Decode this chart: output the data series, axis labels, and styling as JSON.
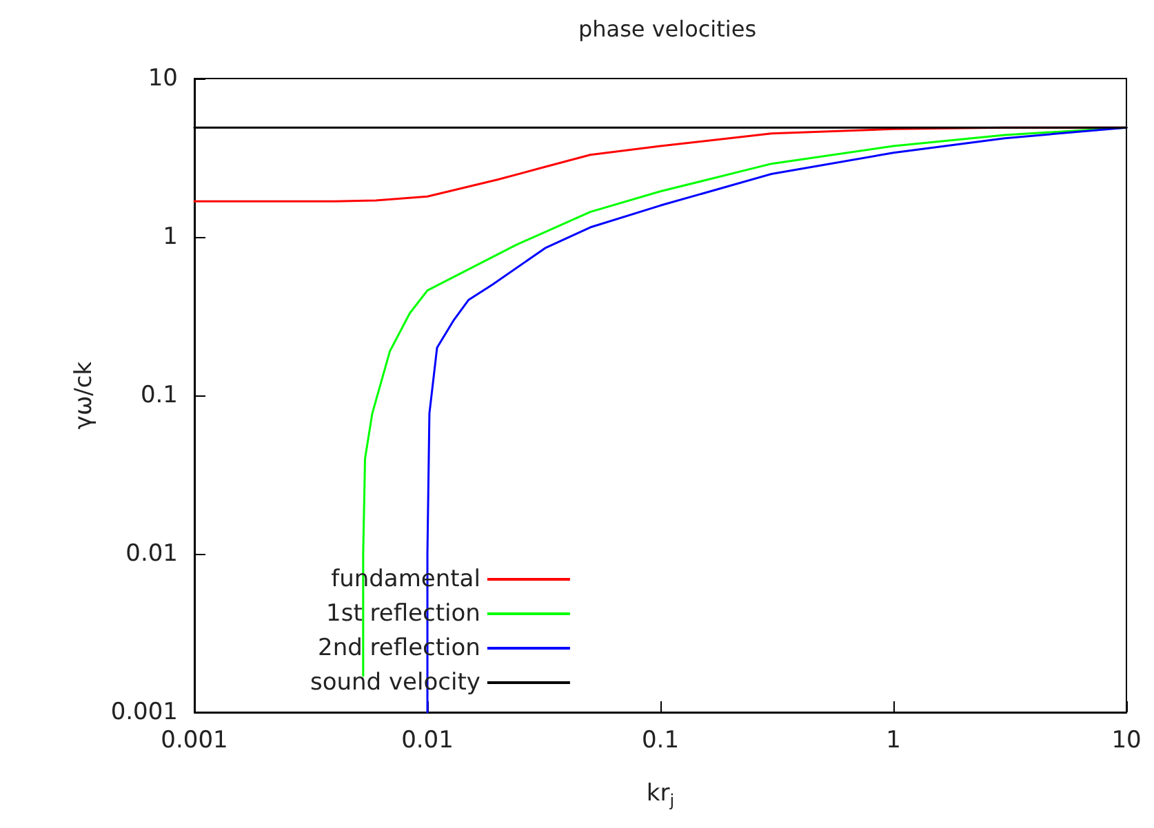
{
  "chart_data": {
    "type": "line",
    "title": "phase velocities",
    "xlabel": "kr$_{j}$",
    "ylabel": "γω/ck",
    "log": "xy",
    "grid": false,
    "legend": "bottom left",
    "marker": "none",
    "line_style": "solid",
    "xlim": [
      0.001,
      10
    ],
    "ylim": [
      0.001,
      10
    ],
    "xticks": [
      0.001,
      0.01,
      0.1,
      1,
      10
    ],
    "yticks": [
      0.001,
      0.01,
      0.1,
      1,
      10
    ],
    "series": [
      {
        "name": "fundamental",
        "color": "#ff0000",
        "x": [
          0.001,
          0.002,
          0.004,
          0.006,
          0.01,
          0.02,
          0.03,
          0.05,
          0.1,
          0.3,
          1,
          3,
          10
        ],
        "values": [
          1.68,
          1.68,
          1.68,
          1.7,
          1.8,
          2.3,
          2.7,
          3.3,
          3.75,
          4.5,
          4.8,
          4.9,
          4.9
        ]
      },
      {
        "name": "1st reflection",
        "color": "#00ff00",
        "x": [
          0.0053,
          0.0053,
          0.0054,
          0.0058,
          0.0069,
          0.0084,
          0.01,
          0.024,
          0.05,
          0.1,
          0.3,
          1,
          3,
          10
        ],
        "values": [
          0.0017,
          0.01,
          0.04,
          0.077,
          0.19,
          0.33,
          0.46,
          0.89,
          1.44,
          1.94,
          2.9,
          3.75,
          4.4,
          4.9
        ]
      },
      {
        "name": "2nd reflection",
        "color": "#0000ff",
        "x": [
          0.01,
          0.01,
          0.0102,
          0.011,
          0.013,
          0.015,
          0.019,
          0.032,
          0.05,
          0.1,
          0.3,
          1,
          3,
          10
        ],
        "values": [
          0.001,
          0.01,
          0.077,
          0.2,
          0.3,
          0.4,
          0.5,
          0.85,
          1.15,
          1.58,
          2.5,
          3.4,
          4.2,
          4.9
        ]
      },
      {
        "name": "sound velocity",
        "color": "#000000",
        "x": [
          0.001,
          10
        ],
        "values": [
          4.9,
          4.9
        ]
      }
    ]
  }
}
